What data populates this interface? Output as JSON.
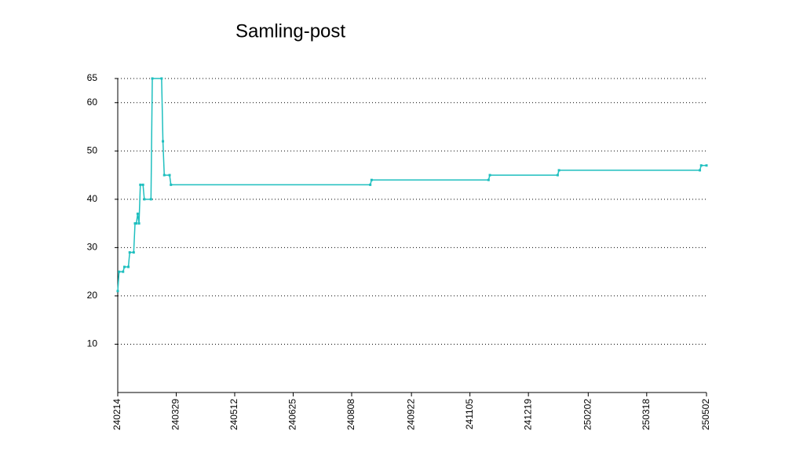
{
  "chart_data": {
    "type": "line",
    "title": "Samling-post",
    "x": [
      "240214",
      "240215",
      "240218",
      "240219",
      "240222",
      "240223",
      "240226",
      "240227",
      "240228",
      "240229",
      "240301",
      "240302",
      "240304",
      "240305",
      "240310",
      "240311",
      "240318",
      "240319",
      "240320",
      "240324",
      "240325",
      "240822",
      "240823",
      "241119",
      "241120",
      "250110",
      "250111",
      "250427",
      "250428",
      "250502"
    ],
    "series": [
      {
        "color": "#1fbfbf",
        "values": [
          21,
          25,
          25,
          26,
          26,
          29,
          29,
          35,
          35,
          37,
          35,
          43,
          43,
          40,
          40,
          65,
          65,
          52,
          45,
          45,
          43,
          43,
          44,
          44,
          45,
          45,
          46,
          46,
          47,
          47
        ]
      }
    ],
    "xlim": [
      "240214",
      "250502"
    ],
    "xticks": [
      "240214",
      "240329",
      "240512",
      "240625",
      "240808",
      "240922",
      "241105",
      "241219",
      "250202",
      "250318",
      "250502"
    ],
    "ylim": [
      0,
      65
    ],
    "yticks": [
      10,
      20,
      30,
      40,
      50,
      60,
      65
    ],
    "grid": true
  }
}
